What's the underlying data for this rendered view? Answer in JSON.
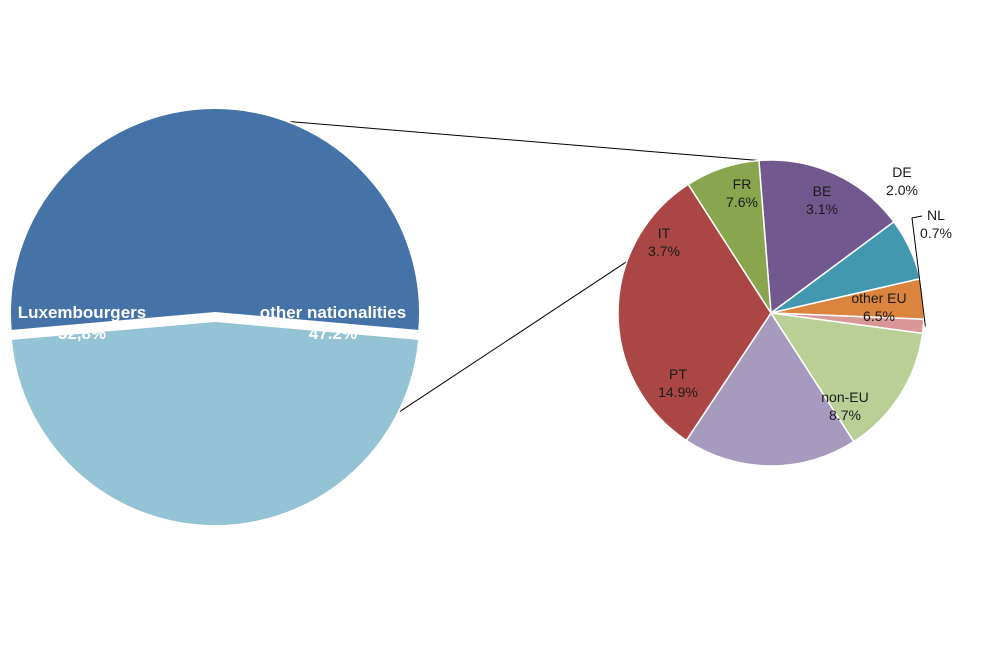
{
  "chart_data": [
    {
      "type": "pie",
      "slices": [
        {
          "label": "Luxembourgers",
          "value_text": "52,8%",
          "value": 52.8,
          "color": "#4572A7"
        },
        {
          "label": "other nationalities",
          "value_text": "47.2%",
          "value": 47.2,
          "color": "#93C3D4",
          "exploded": true
        }
      ]
    },
    {
      "type": "pie",
      "breakdown_of": "other nationalities",
      "slices": [
        {
          "label": "FR",
          "value_text": "7.6%",
          "value": 7.6,
          "color": "#71588F"
        },
        {
          "label": "BE",
          "value_text": "3.1%",
          "value": 3.1,
          "color": "#4198AF"
        },
        {
          "label": "DE",
          "value_text": "2.0%",
          "value": 2.0,
          "color": "#DB843D"
        },
        {
          "label": "NL",
          "value_text": "0.7%",
          "value": 0.7,
          "color": "#D99795"
        },
        {
          "label": "other EU",
          "value_text": "6.5%",
          "value": 6.5,
          "color": "#B9CF96"
        },
        {
          "label": "non-EU",
          "value_text": "8.7%",
          "value": 8.7,
          "color": "#A69BBE"
        },
        {
          "label": "PT",
          "value_text": "14.9%",
          "value": 14.9,
          "color": "#AA4643"
        },
        {
          "label": "IT",
          "value_text": "3.7%",
          "value": 3.7,
          "color": "#89A54E"
        }
      ]
    }
  ]
}
